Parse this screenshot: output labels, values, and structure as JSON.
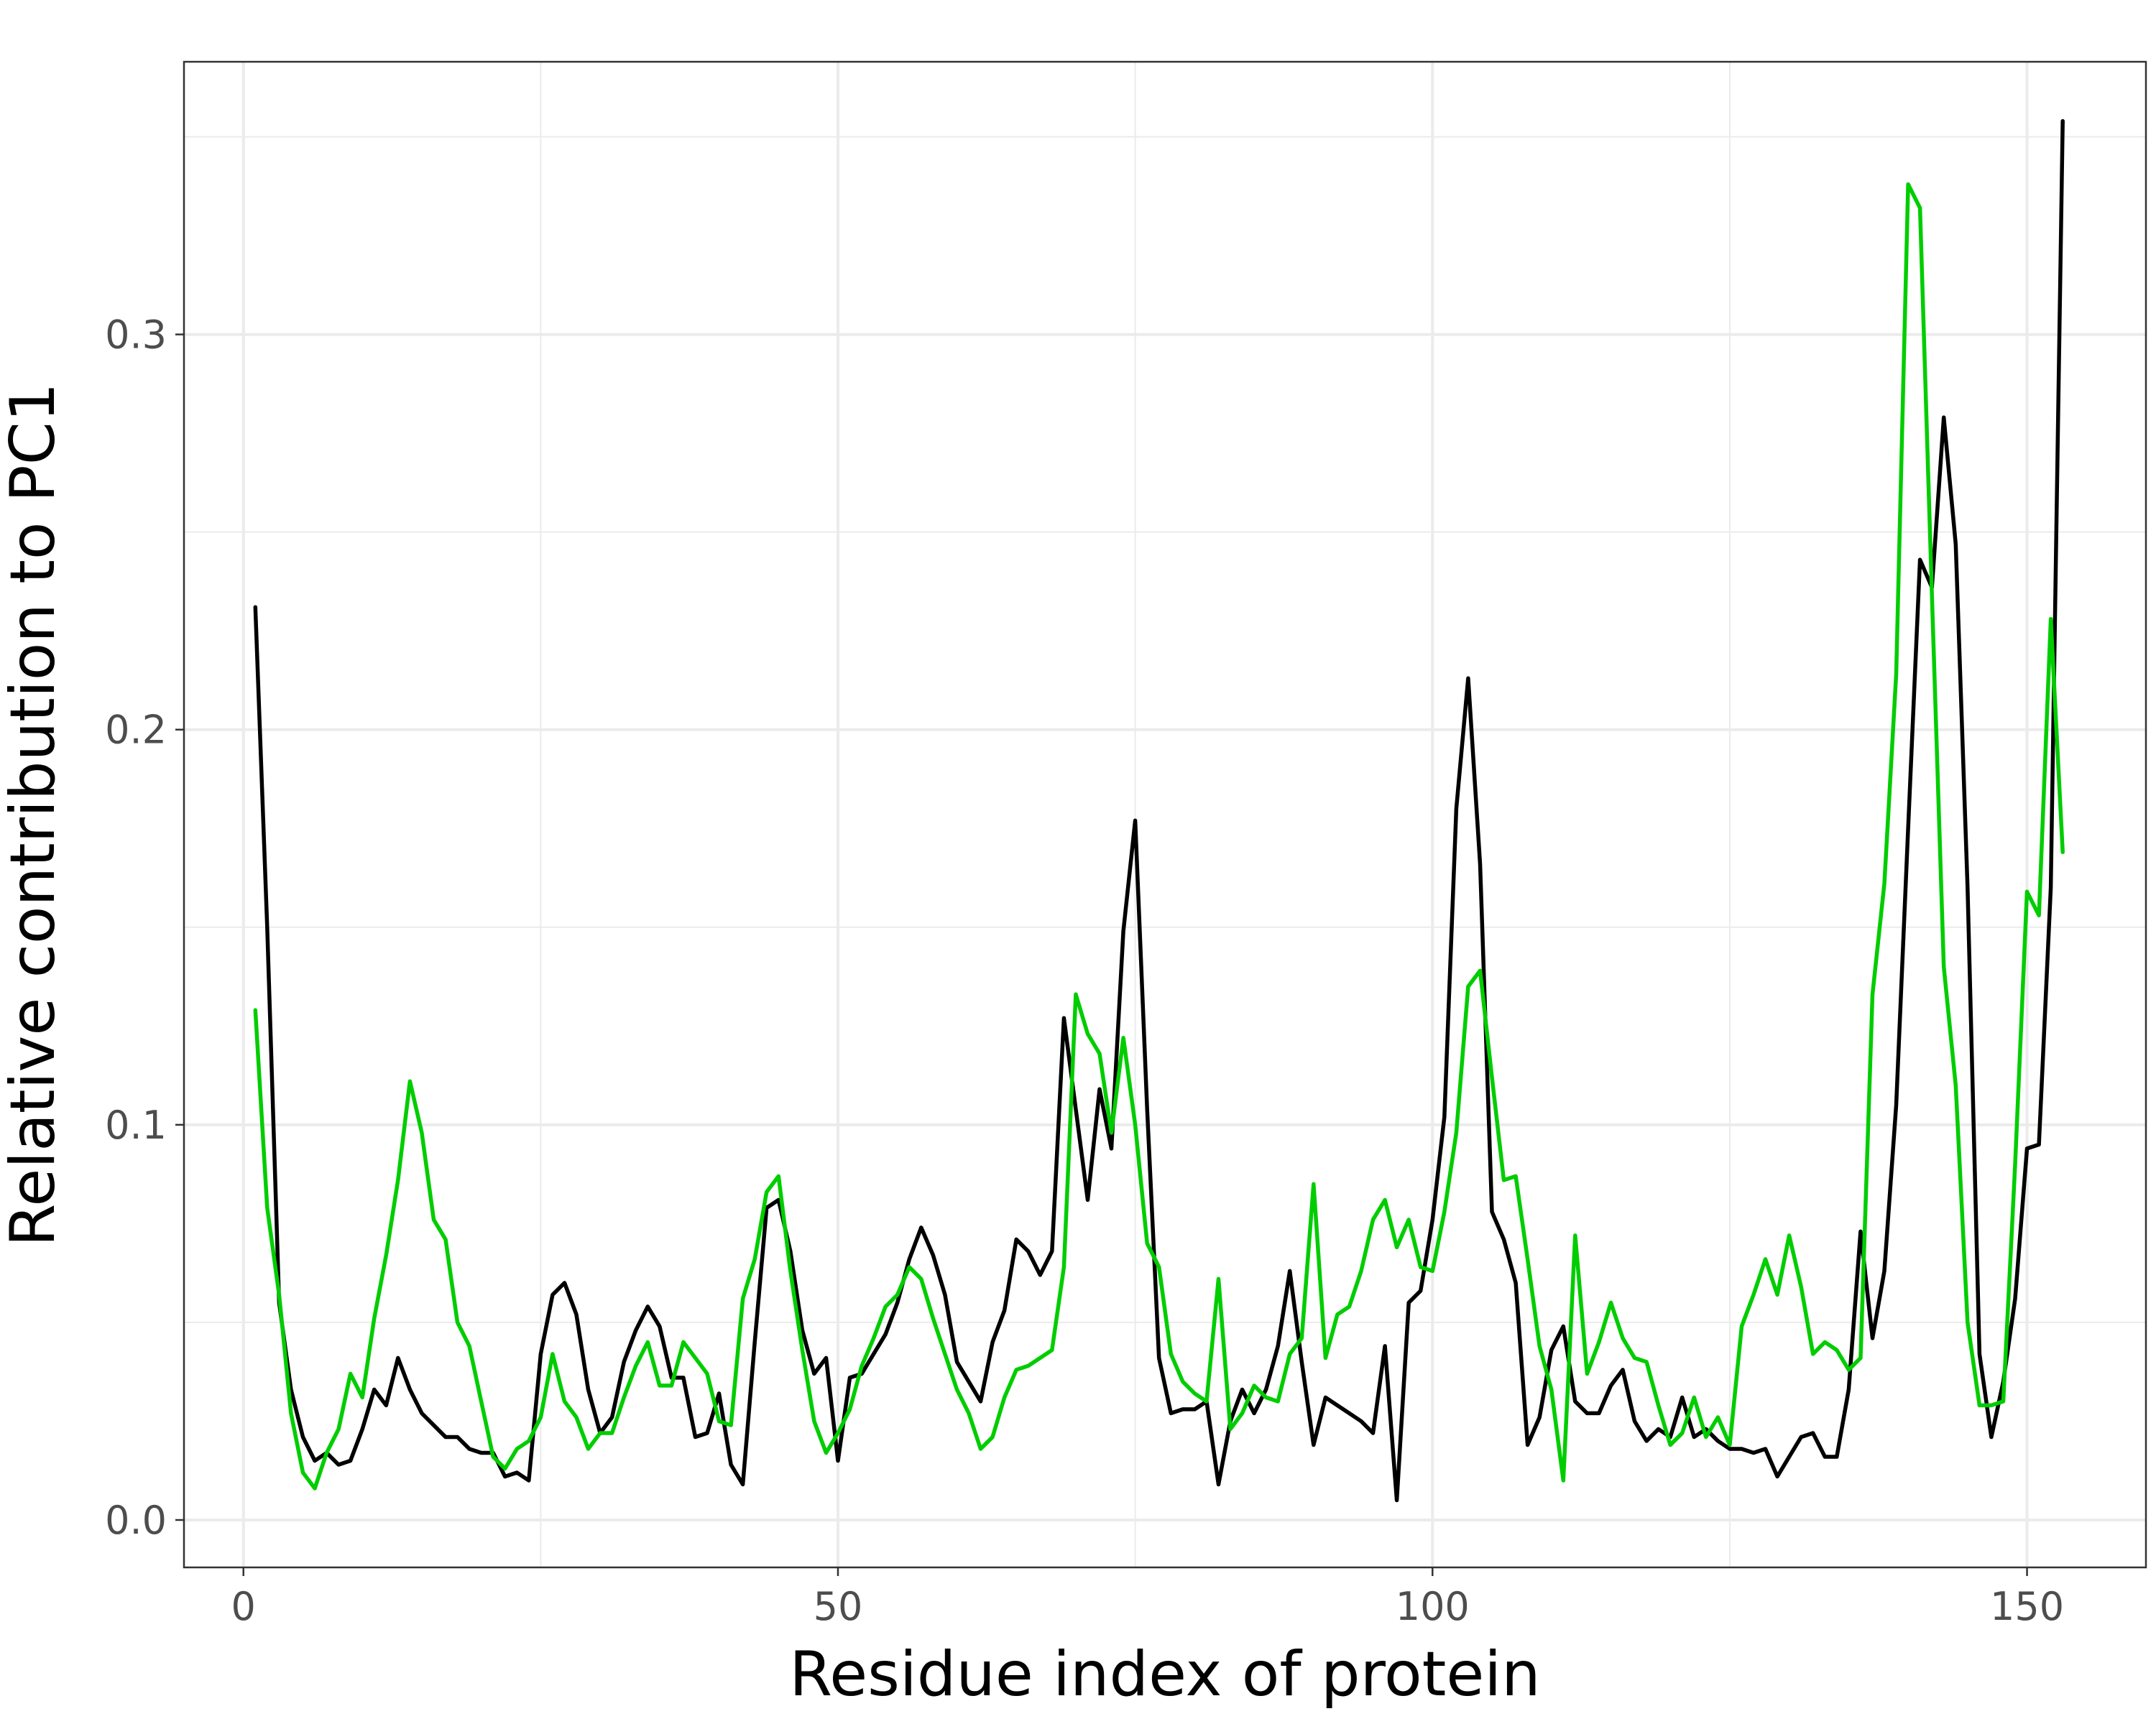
{
  "chart_data": {
    "type": "line",
    "title": "",
    "xlabel": "Residue index of protein",
    "ylabel": "Relative contribution to PC1",
    "xlim": [
      -5,
      160
    ],
    "ylim": [
      -0.012,
      0.369
    ],
    "x_ticks": [
      0,
      50,
      100,
      150
    ],
    "x_tick_labels": [
      "0",
      "50",
      "100",
      "150"
    ],
    "y_ticks": [
      0.0,
      0.1,
      0.2,
      0.3
    ],
    "y_tick_labels": [
      "0.0",
      "0.1",
      "0.2",
      "0.3"
    ],
    "grid": true,
    "legend": "none",
    "series": [
      {
        "color": "#000000",
        "x": [
          1,
          2,
          3,
          4,
          5,
          6,
          7,
          8,
          9,
          10,
          11,
          12,
          13,
          14,
          15,
          16,
          17,
          18,
          19,
          20,
          21,
          22,
          23,
          24,
          25,
          26,
          27,
          28,
          29,
          30,
          31,
          32,
          33,
          34,
          35,
          36,
          37,
          38,
          39,
          40,
          41,
          42,
          43,
          44,
          45,
          46,
          47,
          48,
          49,
          50,
          51,
          52,
          53,
          54,
          55,
          56,
          57,
          58,
          59,
          60,
          61,
          62,
          63,
          64,
          65,
          66,
          67,
          68,
          69,
          70,
          71,
          72,
          73,
          74,
          75,
          76,
          77,
          78,
          79,
          80,
          81,
          82,
          83,
          84,
          85,
          86,
          87,
          88,
          89,
          90,
          91,
          92,
          93,
          94,
          95,
          96,
          97,
          98,
          99,
          100,
          101,
          102,
          103,
          104,
          105,
          106,
          107,
          108,
          109,
          110,
          111,
          112,
          113,
          114,
          115,
          116,
          117,
          118,
          119,
          120,
          121,
          122,
          123,
          124,
          125,
          126,
          127,
          128,
          129,
          130,
          131,
          132,
          133,
          134,
          135,
          136,
          137,
          138,
          139,
          140,
          141,
          142,
          143,
          144,
          145,
          146,
          147,
          148,
          149,
          150,
          151,
          152,
          153
        ],
        "y": [
          0.231,
          0.15,
          0.055,
          0.033,
          0.021,
          0.015,
          0.017,
          0.014,
          0.015,
          0.023,
          0.033,
          0.029,
          0.041,
          0.033,
          0.027,
          0.024,
          0.021,
          0.021,
          0.018,
          0.017,
          0.017,
          0.011,
          0.012,
          0.01,
          0.042,
          0.057,
          0.06,
          0.052,
          0.033,
          0.022,
          0.026,
          0.04,
          0.048,
          0.054,
          0.049,
          0.036,
          0.036,
          0.021,
          0.022,
          0.032,
          0.014,
          0.009,
          0.045,
          0.079,
          0.081,
          0.068,
          0.048,
          0.037,
          0.041,
          0.015,
          0.036,
          0.037,
          0.042,
          0.047,
          0.055,
          0.066,
          0.074,
          0.067,
          0.057,
          0.04,
          0.035,
          0.03,
          0.045,
          0.053,
          0.071,
          0.068,
          0.062,
          0.068,
          0.127,
          0.104,
          0.081,
          0.109,
          0.094,
          0.149,
          0.177,
          0.104,
          0.041,
          0.027,
          0.028,
          0.028,
          0.03,
          0.009,
          0.025,
          0.033,
          0.027,
          0.033,
          0.044,
          0.063,
          0.04,
          0.019,
          0.031,
          0.029,
          0.027,
          0.025,
          0.022,
          0.044,
          0.005,
          0.055,
          0.058,
          0.076,
          0.102,
          0.18,
          0.213,
          0.166,
          0.078,
          0.071,
          0.06,
          0.019,
          0.026,
          0.043,
          0.049,
          0.03,
          0.027,
          0.027,
          0.034,
          0.038,
          0.025,
          0.02,
          0.023,
          0.021,
          0.031,
          0.021,
          0.023,
          0.02,
          0.018,
          0.018,
          0.017,
          0.018,
          0.011,
          0.016,
          0.021,
          0.022,
          0.016,
          0.016,
          0.033,
          0.073,
          0.046,
          0.063,
          0.105,
          0.175,
          0.243,
          0.236,
          0.279,
          0.247,
          0.16,
          0.042,
          0.021,
          0.035,
          0.056,
          0.094,
          0.095,
          0.16,
          0.354
        ]
      },
      {
        "color": "#00cd00",
        "x": [
          1,
          2,
          3,
          4,
          5,
          6,
          7,
          8,
          9,
          10,
          11,
          12,
          13,
          14,
          15,
          16,
          17,
          18,
          19,
          20,
          21,
          22,
          23,
          24,
          25,
          26,
          27,
          28,
          29,
          30,
          31,
          32,
          33,
          34,
          35,
          36,
          37,
          38,
          39,
          40,
          41,
          42,
          43,
          44,
          45,
          46,
          47,
          48,
          49,
          50,
          51,
          52,
          53,
          54,
          55,
          56,
          57,
          58,
          59,
          60,
          61,
          62,
          63,
          64,
          65,
          66,
          67,
          68,
          69,
          70,
          71,
          72,
          73,
          74,
          75,
          76,
          77,
          78,
          79,
          80,
          81,
          82,
          83,
          84,
          85,
          86,
          87,
          88,
          89,
          90,
          91,
          92,
          93,
          94,
          95,
          96,
          97,
          98,
          99,
          100,
          101,
          102,
          103,
          104,
          105,
          106,
          107,
          108,
          109,
          110,
          111,
          112,
          113,
          114,
          115,
          116,
          117,
          118,
          119,
          120,
          121,
          122,
          123,
          124,
          125,
          126,
          127,
          128,
          129,
          130,
          131,
          132,
          133,
          134,
          135,
          136,
          137,
          138,
          139,
          140,
          141,
          142,
          143,
          144,
          145,
          146,
          147,
          148,
          149,
          150,
          151,
          152,
          153
        ],
        "y": [
          0.129,
          0.079,
          0.057,
          0.027,
          0.012,
          0.008,
          0.017,
          0.023,
          0.037,
          0.031,
          0.051,
          0.067,
          0.086,
          0.111,
          0.098,
          0.076,
          0.071,
          0.05,
          0.044,
          0.03,
          0.016,
          0.013,
          0.018,
          0.02,
          0.026,
          0.042,
          0.03,
          0.026,
          0.018,
          0.022,
          0.022,
          0.031,
          0.039,
          0.045,
          0.034,
          0.034,
          0.045,
          0.041,
          0.037,
          0.025,
          0.024,
          0.056,
          0.066,
          0.083,
          0.087,
          0.063,
          0.043,
          0.025,
          0.017,
          0.022,
          0.028,
          0.039,
          0.046,
          0.054,
          0.057,
          0.064,
          0.061,
          0.051,
          0.042,
          0.033,
          0.027,
          0.018,
          0.021,
          0.031,
          0.038,
          0.039,
          0.041,
          0.043,
          0.064,
          0.133,
          0.123,
          0.118,
          0.098,
          0.122,
          0.1,
          0.07,
          0.064,
          0.042,
          0.035,
          0.032,
          0.03,
          0.061,
          0.023,
          0.027,
          0.034,
          0.031,
          0.03,
          0.042,
          0.046,
          0.085,
          0.041,
          0.052,
          0.054,
          0.063,
          0.076,
          0.081,
          0.069,
          0.076,
          0.064,
          0.063,
          0.078,
          0.098,
          0.135,
          0.139,
          0.112,
          0.086,
          0.087,
          0.066,
          0.044,
          0.033,
          0.01,
          0.072,
          0.037,
          0.045,
          0.055,
          0.046,
          0.041,
          0.04,
          0.029,
          0.019,
          0.022,
          0.031,
          0.021,
          0.026,
          0.019,
          0.049,
          0.057,
          0.066,
          0.057,
          0.072,
          0.059,
          0.042,
          0.045,
          0.043,
          0.038,
          0.041,
          0.133,
          0.161,
          0.214,
          0.338,
          0.332,
          0.234,
          0.14,
          0.11,
          0.05,
          0.029,
          0.029,
          0.03,
          0.09,
          0.159,
          0.153,
          0.228,
          0.169
        ]
      }
    ]
  }
}
